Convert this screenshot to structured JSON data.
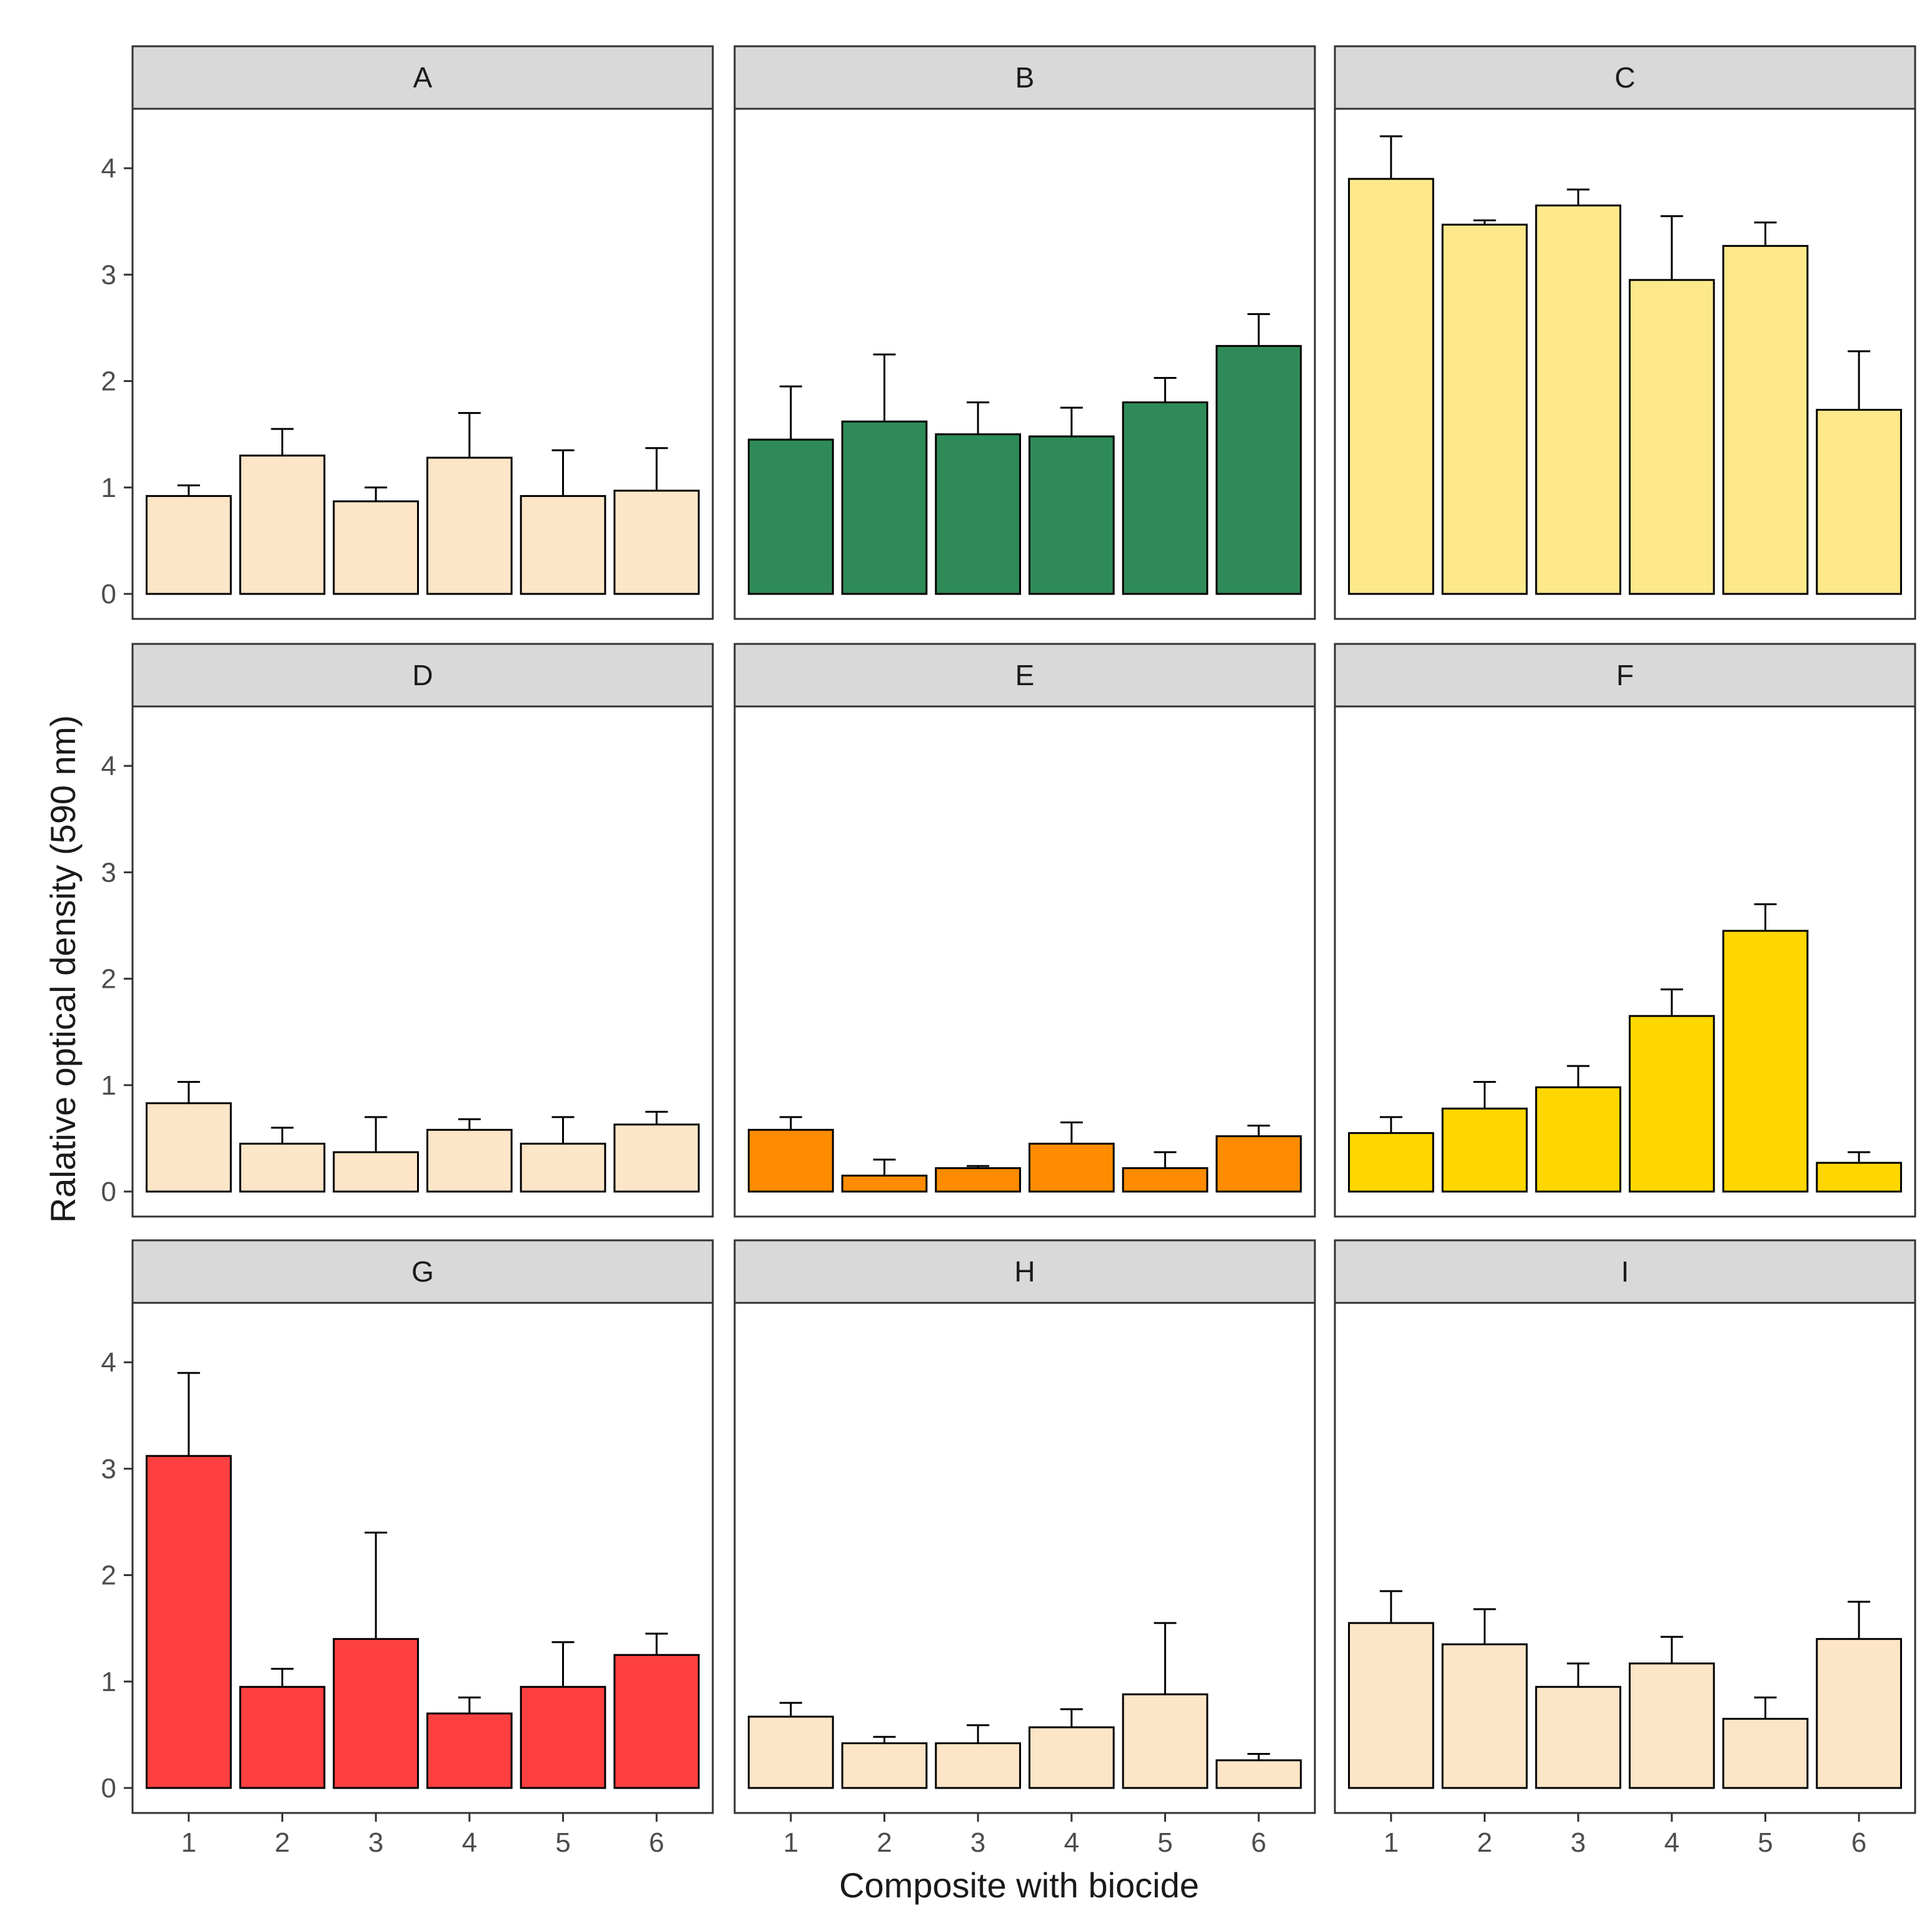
{
  "chart_data": {
    "type": "bar",
    "layout": "facet-grid-3x3",
    "xlabel": "Composite with biocide",
    "ylabel": "Ralative optical density (590 nm)",
    "categories": [
      "1",
      "2",
      "3",
      "4",
      "5",
      "6"
    ],
    "ylim": [
      0,
      4.5
    ],
    "yticks": [
      0,
      1,
      2,
      3,
      4
    ],
    "grid": false,
    "strip_color": "#d9d9d9",
    "panels": [
      {
        "name": "A",
        "fill": "#fde5c7",
        "values": [
          0.92,
          1.3,
          0.87,
          1.28,
          0.92,
          0.97
        ],
        "errors": [
          0.1,
          0.25,
          0.13,
          0.42,
          0.43,
          0.4
        ]
      },
      {
        "name": "B",
        "fill": "#2e8b57",
        "values": [
          1.45,
          1.62,
          1.5,
          1.48,
          1.8,
          2.33
        ],
        "errors": [
          0.5,
          0.63,
          0.3,
          0.27,
          0.23,
          0.3
        ]
      },
      {
        "name": "C",
        "fill": "#fde98b",
        "values": [
          3.9,
          3.47,
          3.65,
          2.95,
          3.27,
          1.73
        ],
        "errors": [
          0.4,
          0.04,
          0.15,
          0.6,
          0.22,
          0.55
        ]
      },
      {
        "name": "D",
        "fill": "#fde5c7",
        "values": [
          0.83,
          0.45,
          0.37,
          0.58,
          0.45,
          0.63
        ],
        "errors": [
          0.2,
          0.15,
          0.33,
          0.1,
          0.25,
          0.12
        ]
      },
      {
        "name": "E",
        "fill": "#ff8c00",
        "values": [
          0.58,
          0.15,
          0.22,
          0.45,
          0.22,
          0.52
        ],
        "errors": [
          0.12,
          0.15,
          0.02,
          0.2,
          0.15,
          0.1
        ]
      },
      {
        "name": "F",
        "fill": "#ffd700",
        "values": [
          0.55,
          0.78,
          0.98,
          1.65,
          2.45,
          0.27
        ],
        "errors": [
          0.15,
          0.25,
          0.2,
          0.25,
          0.25,
          0.1
        ]
      },
      {
        "name": "G",
        "fill": "#ff4040",
        "values": [
          3.12,
          0.95,
          1.4,
          0.7,
          0.95,
          1.25
        ],
        "errors": [
          0.78,
          0.17,
          1.0,
          0.15,
          0.42,
          0.2
        ]
      },
      {
        "name": "H",
        "fill": "#fde5c7",
        "values": [
          0.67,
          0.42,
          0.42,
          0.57,
          0.88,
          0.26
        ],
        "errors": [
          0.13,
          0.06,
          0.17,
          0.17,
          0.67,
          0.06
        ]
      },
      {
        "name": "I",
        "fill": "#fde5c7",
        "values": [
          1.55,
          1.35,
          0.95,
          1.17,
          0.65,
          1.4
        ],
        "errors": [
          0.3,
          0.33,
          0.22,
          0.25,
          0.2,
          0.35
        ]
      }
    ]
  }
}
